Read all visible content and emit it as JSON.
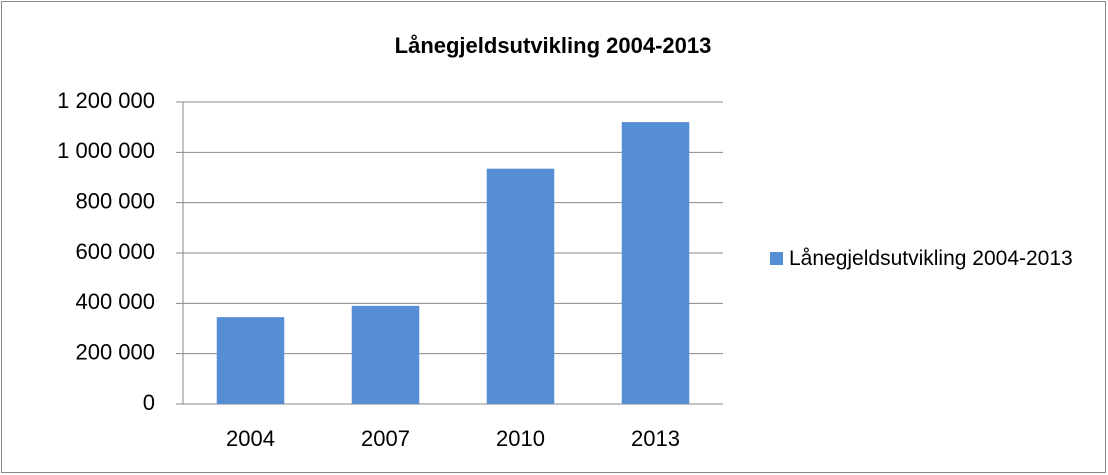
{
  "chart_data": {
    "type": "bar",
    "title": "Lånegjeldsutvikling 2004-2013",
    "categories": [
      "2004",
      "2007",
      "2010",
      "2013"
    ],
    "series": [
      {
        "name": "Lånegjeldsutvikling 2004-2013",
        "color": "#558ed5",
        "values": [
          345000,
          390000,
          935000,
          1120000
        ]
      }
    ],
    "ylim": [
      0,
      1200000
    ],
    "yticks": [
      0,
      {
        "value": 200000,
        "label": "200 000"
      },
      {
        "value": 400000,
        "label": "400 000"
      },
      {
        "value": 600000,
        "label": "600 000"
      },
      {
        "value": 800000,
        "label": "800 000"
      },
      {
        "value": 1000000,
        "label": "1 000 000"
      },
      {
        "value": 1200000,
        "label": "1 200 000"
      }
    ],
    "grid": true,
    "legend": "right"
  }
}
